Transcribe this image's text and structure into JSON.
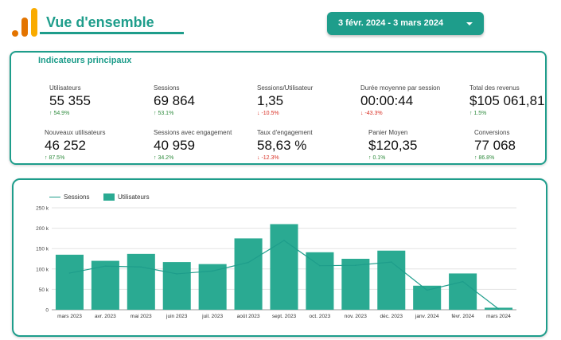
{
  "header": {
    "title": "Vue d'ensemble",
    "date_range": "3 févr. 2024 - 3 mars 2024",
    "accent_color": "#1e9d8b",
    "logo": "analytics-bars-logo"
  },
  "kpis": {
    "title": "Indicateurs principaux",
    "items": [
      {
        "label": "Utilisateurs",
        "value": "55 355",
        "delta": "54.9%",
        "trend": "up"
      },
      {
        "label": "Sessions",
        "value": "69 864",
        "delta": "53.1%",
        "trend": "up"
      },
      {
        "label": "Sessions/Utilisateur",
        "value": "1,35",
        "delta": "-10.5%",
        "trend": "down"
      },
      {
        "label": "Durée moyenne par session",
        "value": "00:00:44",
        "delta": "-43.3%",
        "trend": "down"
      },
      {
        "label": "Total des revenus",
        "value": "$105 061,81",
        "delta": "1.5%",
        "trend": "up"
      },
      {
        "label": "Nouveaux utilisateurs",
        "value": "46 252",
        "delta": "87.5%",
        "trend": "up"
      },
      {
        "label": "Sessions avec engagement",
        "value": "40 959",
        "delta": "34.2%",
        "trend": "up"
      },
      {
        "label": "Taux d'engagement",
        "value": "58,63 %",
        "delta": "-12.3%",
        "trend": "down"
      },
      {
        "label": "Panier Moyen",
        "value": "$120,35",
        "delta": "0.1%",
        "trend": "up"
      },
      {
        "label": "Conversions",
        "value": "77 068",
        "delta": "86.8%",
        "trend": "up"
      }
    ]
  },
  "chart_data": {
    "type": "bar",
    "categories": [
      "mars 2023",
      "avr. 2023",
      "mai 2023",
      "juin 2023",
      "juil. 2023",
      "août 2023",
      "sept. 2023",
      "oct. 2023",
      "nov. 2023",
      "déc. 2023",
      "janv. 2024",
      "févr. 2024",
      "mars 2024"
    ],
    "series": [
      {
        "name": "Utilisateurs",
        "type": "bar",
        "color": "#2aaa92",
        "values": [
          135000,
          120000,
          137000,
          117000,
          112000,
          175000,
          210000,
          141000,
          125000,
          145000,
          59000,
          89000,
          5000
        ]
      },
      {
        "name": "Sessions",
        "type": "line",
        "color": "#1e9d8b",
        "values": [
          90000,
          107000,
          105000,
          88000,
          95000,
          116000,
          170000,
          108000,
          109000,
          117000,
          48000,
          69000,
          2000
        ]
      }
    ],
    "yticks": [
      "0",
      "50 k",
      "100 k",
      "150 k",
      "200 k",
      "250 k"
    ],
    "ylim": [
      0,
      250000
    ],
    "legend_position": "top-left",
    "grid": true
  }
}
